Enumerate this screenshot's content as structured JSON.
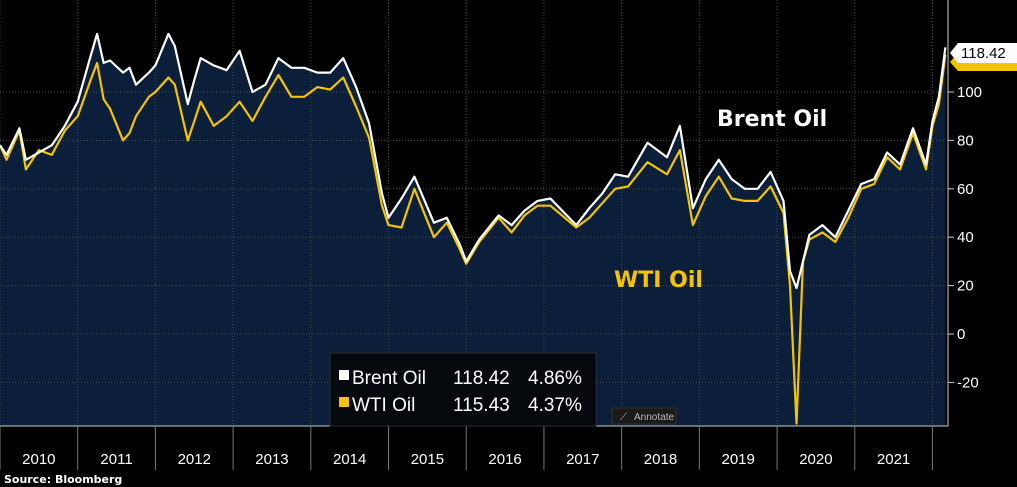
{
  "chart_data": {
    "type": "line",
    "title": "",
    "xlabel": "",
    "ylabel": "",
    "x_tick_labels": [
      "2010",
      "2011",
      "2012",
      "2013",
      "2014",
      "2015",
      "2016",
      "2017",
      "2018",
      "2019",
      "2020",
      "2021"
    ],
    "y_ticks": [
      -20,
      0,
      20,
      40,
      60,
      80,
      100
    ],
    "ylim": [
      -38,
      138
    ],
    "xlim": [
      "2010-01",
      "2022-03"
    ],
    "grid": true,
    "series": [
      {
        "name": "Brent Oil",
        "color": "#ffffff",
        "last": "118.42",
        "change": "4.86%",
        "points": [
          [
            "2010-01",
            78
          ],
          [
            "2010-02",
            74
          ],
          [
            "2010-04",
            85
          ],
          [
            "2010-05",
            72
          ],
          [
            "2010-07",
            75
          ],
          [
            "2010-09",
            78
          ],
          [
            "2010-11",
            86
          ],
          [
            "2011-01",
            96
          ],
          [
            "2011-03",
            115
          ],
          [
            "2011-04",
            124
          ],
          [
            "2011-05",
            112
          ],
          [
            "2011-06",
            113
          ],
          [
            "2011-08",
            108
          ],
          [
            "2011-09",
            110
          ],
          [
            "2011-10",
            103
          ],
          [
            "2011-12",
            108
          ],
          [
            "2012-01",
            111
          ],
          [
            "2012-03",
            124
          ],
          [
            "2012-04",
            119
          ],
          [
            "2012-06",
            95
          ],
          [
            "2012-07",
            105
          ],
          [
            "2012-08",
            114
          ],
          [
            "2012-10",
            111
          ],
          [
            "2012-12",
            109
          ],
          [
            "2013-02",
            117
          ],
          [
            "2013-04",
            100
          ],
          [
            "2013-06",
            103
          ],
          [
            "2013-08",
            114
          ],
          [
            "2013-10",
            110
          ],
          [
            "2013-12",
            110
          ],
          [
            "2014-02",
            108
          ],
          [
            "2014-04",
            108
          ],
          [
            "2014-06",
            114
          ],
          [
            "2014-08",
            102
          ],
          [
            "2014-10",
            87
          ],
          [
            "2014-12",
            58
          ],
          [
            "2015-01",
            48
          ],
          [
            "2015-03",
            56
          ],
          [
            "2015-05",
            65
          ],
          [
            "2015-08",
            46
          ],
          [
            "2015-10",
            48
          ],
          [
            "2015-12",
            37
          ],
          [
            "2016-01",
            30
          ],
          [
            "2016-03",
            39
          ],
          [
            "2016-06",
            49
          ],
          [
            "2016-08",
            45
          ],
          [
            "2016-10",
            51
          ],
          [
            "2016-12",
            55
          ],
          [
            "2017-02",
            56
          ],
          [
            "2017-06",
            45
          ],
          [
            "2017-08",
            52
          ],
          [
            "2017-10",
            58
          ],
          [
            "2017-12",
            66
          ],
          [
            "2018-02",
            65
          ],
          [
            "2018-05",
            79
          ],
          [
            "2018-08",
            73
          ],
          [
            "2018-10",
            86
          ],
          [
            "2018-12",
            52
          ],
          [
            "2019-02",
            64
          ],
          [
            "2019-04",
            72
          ],
          [
            "2019-06",
            64
          ],
          [
            "2019-08",
            60
          ],
          [
            "2019-10",
            60
          ],
          [
            "2019-12",
            67
          ],
          [
            "2020-02",
            55
          ],
          [
            "2020-03",
            26
          ],
          [
            "2020-04",
            19
          ],
          [
            "2020-05",
            30
          ],
          [
            "2020-06",
            41
          ],
          [
            "2020-08",
            45
          ],
          [
            "2020-10",
            40
          ],
          [
            "2020-12",
            51
          ],
          [
            "2021-02",
            62
          ],
          [
            "2021-04",
            64
          ],
          [
            "2021-06",
            75
          ],
          [
            "2021-08",
            70
          ],
          [
            "2021-10",
            85
          ],
          [
            "2021-12",
            70
          ],
          [
            "2022-01",
            88
          ],
          [
            "2022-02",
            98
          ],
          [
            "2022-03",
            118.42
          ]
        ]
      },
      {
        "name": "WTI Oil",
        "color": "#f5c400",
        "last": "115.43",
        "change": "4.37%",
        "points": [
          [
            "2010-01",
            78
          ],
          [
            "2010-02",
            72
          ],
          [
            "2010-04",
            84
          ],
          [
            "2010-05",
            68
          ],
          [
            "2010-07",
            76
          ],
          [
            "2010-09",
            74
          ],
          [
            "2010-11",
            84
          ],
          [
            "2011-01",
            90
          ],
          [
            "2011-03",
            105
          ],
          [
            "2011-04",
            112
          ],
          [
            "2011-05",
            97
          ],
          [
            "2011-06",
            93
          ],
          [
            "2011-08",
            80
          ],
          [
            "2011-09",
            83
          ],
          [
            "2011-10",
            90
          ],
          [
            "2011-12",
            98
          ],
          [
            "2012-01",
            100
          ],
          [
            "2012-03",
            106
          ],
          [
            "2012-04",
            103
          ],
          [
            "2012-06",
            80
          ],
          [
            "2012-07",
            88
          ],
          [
            "2012-08",
            96
          ],
          [
            "2012-10",
            86
          ],
          [
            "2012-12",
            90
          ],
          [
            "2013-02",
            96
          ],
          [
            "2013-04",
            88
          ],
          [
            "2013-06",
            98
          ],
          [
            "2013-08",
            107
          ],
          [
            "2013-10",
            98
          ],
          [
            "2013-12",
            98
          ],
          [
            "2014-02",
            102
          ],
          [
            "2014-04",
            101
          ],
          [
            "2014-06",
            106
          ],
          [
            "2014-08",
            94
          ],
          [
            "2014-10",
            81
          ],
          [
            "2014-12",
            53
          ],
          [
            "2015-01",
            45
          ],
          [
            "2015-03",
            44
          ],
          [
            "2015-05",
            60
          ],
          [
            "2015-08",
            40
          ],
          [
            "2015-10",
            46
          ],
          [
            "2015-12",
            35
          ],
          [
            "2016-01",
            29
          ],
          [
            "2016-03",
            38
          ],
          [
            "2016-06",
            48
          ],
          [
            "2016-08",
            42
          ],
          [
            "2016-10",
            49
          ],
          [
            "2016-12",
            53
          ],
          [
            "2017-02",
            53
          ],
          [
            "2017-06",
            44
          ],
          [
            "2017-08",
            48
          ],
          [
            "2017-10",
            54
          ],
          [
            "2017-12",
            60
          ],
          [
            "2018-02",
            61
          ],
          [
            "2018-05",
            71
          ],
          [
            "2018-08",
            66
          ],
          [
            "2018-10",
            76
          ],
          [
            "2018-12",
            45
          ],
          [
            "2019-02",
            57
          ],
          [
            "2019-04",
            65
          ],
          [
            "2019-06",
            56
          ],
          [
            "2019-08",
            55
          ],
          [
            "2019-10",
            55
          ],
          [
            "2019-12",
            61
          ],
          [
            "2020-02",
            50
          ],
          [
            "2020-03",
            20
          ],
          [
            "2020-04",
            -37
          ],
          [
            "2020-05",
            30
          ],
          [
            "2020-06",
            39
          ],
          [
            "2020-08",
            42
          ],
          [
            "2020-10",
            38
          ],
          [
            "2020-12",
            48
          ],
          [
            "2021-02",
            60
          ],
          [
            "2021-04",
            62
          ],
          [
            "2021-06",
            73
          ],
          [
            "2021-08",
            68
          ],
          [
            "2021-10",
            83
          ],
          [
            "2021-12",
            68
          ],
          [
            "2022-01",
            86
          ],
          [
            "2022-02",
            95
          ],
          [
            "2022-03",
            115.43
          ]
        ]
      }
    ],
    "annotations": [
      {
        "text": "Brent Oil",
        "color": "#ffffff"
      },
      {
        "text": "WTI Oil",
        "color": "#f5c400"
      }
    ],
    "last_value_label": "118.42"
  },
  "source": "Source: Bloomberg",
  "annotate_button": "Annotate",
  "colors": {
    "background": "#000000",
    "plot_fill": "#0b1f3a",
    "grid": "#4a4a4a",
    "brent": "#ffffff",
    "wti": "#f5c400"
  }
}
